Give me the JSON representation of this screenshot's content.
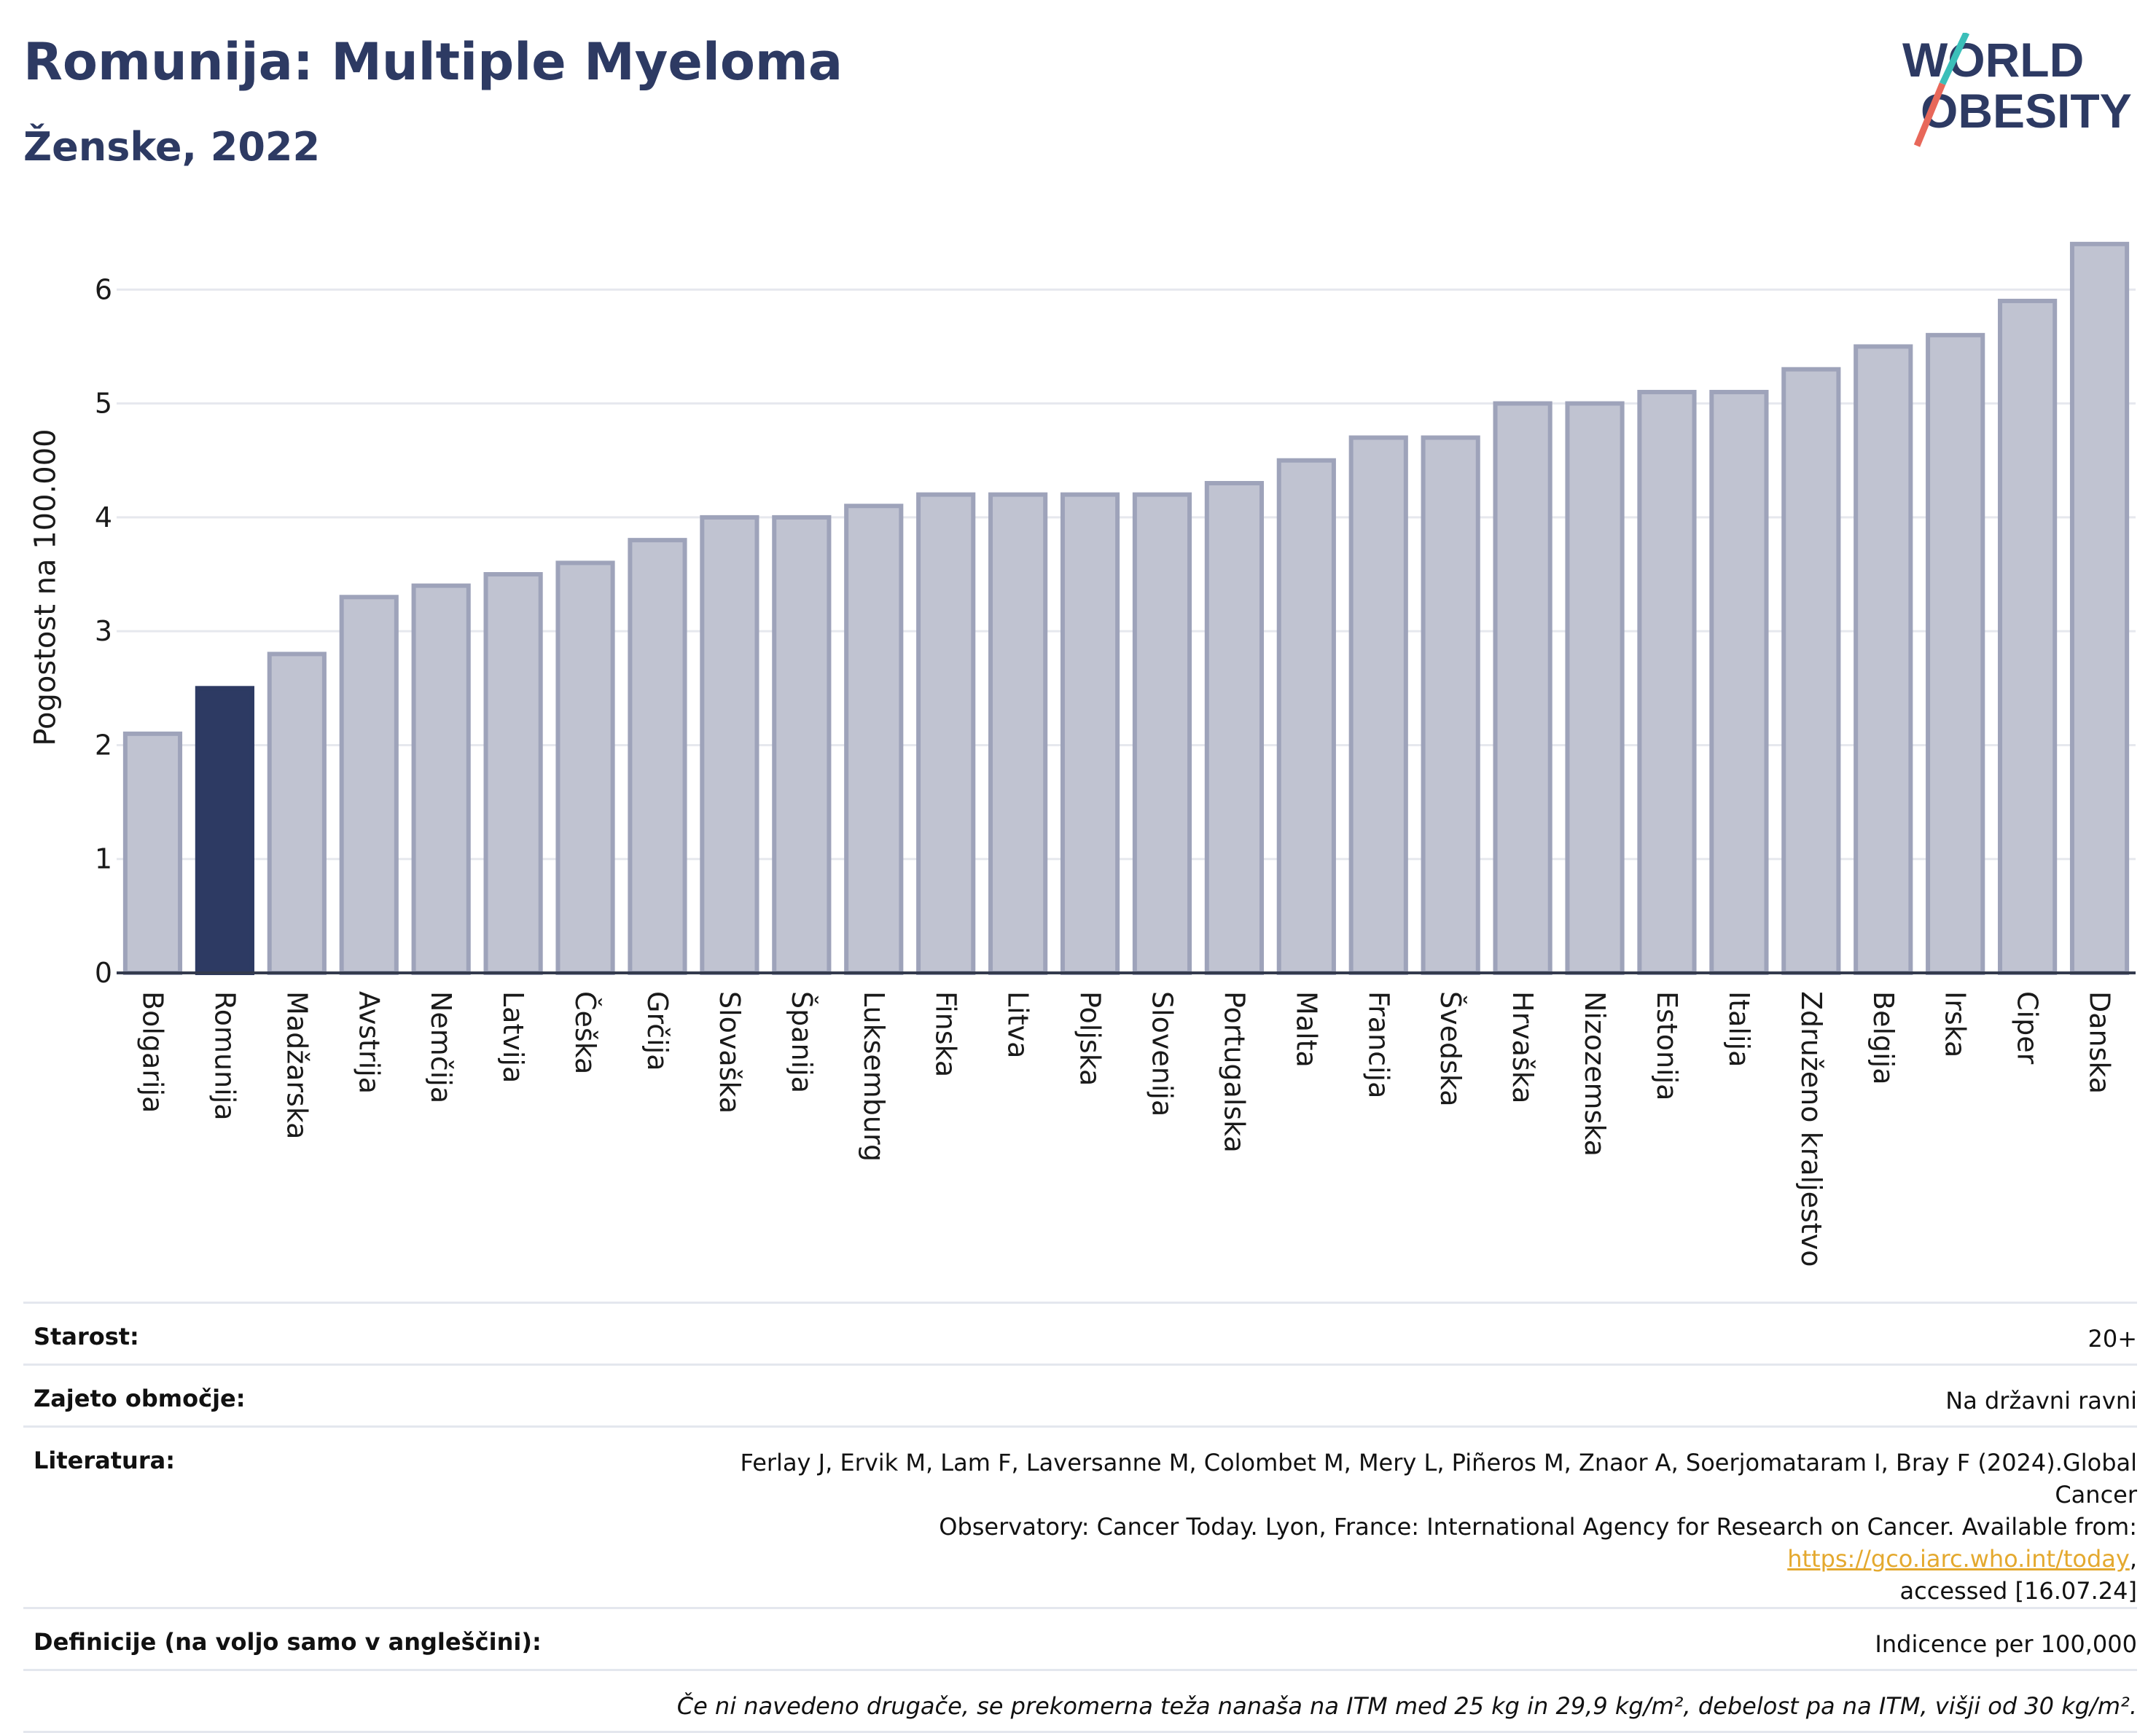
{
  "header": {
    "title": "Romunija: Multiple Myeloma",
    "subtitle": "Ženske, 2022"
  },
  "logo": {
    "line1": "WORLD",
    "line2": "OBESITY",
    "colors": {
      "text": "#2d3a63",
      "slash_teal": "#3bbfb9",
      "slash_red": "#e8685a"
    }
  },
  "colors": {
    "bar_default": "#c0c3d1",
    "bar_border": "#9ea3ba",
    "bar_highlight": "#2d3a63",
    "grid": "#e6e8ee",
    "axis": "#333a4d"
  },
  "chart_data": {
    "type": "bar",
    "ylabel": "Pogostost na 100.000",
    "xlabel": "",
    "ylim": [
      0,
      6.45
    ],
    "yticks": [
      0,
      1,
      2,
      3,
      4,
      5,
      6
    ],
    "grid": true,
    "highlight": "Romunija",
    "categories": [
      "Bolgarija",
      "Romunija",
      "Madžarska",
      "Avstrija",
      "Nemčija",
      "Latvija",
      "Češka",
      "Grčija",
      "Slovaška",
      "Španija",
      "Luksemburg",
      "Finska",
      "Litva",
      "Poljska",
      "Slovenija",
      "Portugalska",
      "Malta",
      "Francija",
      "Švedska",
      "Hrvaška",
      "Nizozemska",
      "Estonija",
      "Italija",
      "Združeno kraljestvo",
      "Belgija",
      "Irska",
      "Ciper",
      "Danska"
    ],
    "values": [
      2.1,
      2.5,
      2.8,
      3.3,
      3.4,
      3.5,
      3.6,
      3.8,
      4.0,
      4.0,
      4.1,
      4.2,
      4.2,
      4.2,
      4.2,
      4.3,
      4.5,
      4.7,
      4.7,
      5.0,
      5.0,
      5.1,
      5.1,
      5.3,
      5.5,
      5.6,
      5.9,
      6.4
    ]
  },
  "meta": {
    "age_label": "Starost:",
    "age_value": "20+",
    "coverage_label": "Zajeto območje:",
    "coverage_value": "Na državni ravni",
    "literature_label": "Literatura:",
    "literature_line1": "Ferlay J, Ervik M, Lam F, Laversanne M, Colombet M, Mery L, Piñeros M, Znaor A, Soerjomataram I, Bray F (2024).Global Cancer",
    "literature_line2": "Observatory: Cancer Today. Lyon, France: International Agency for Research on Cancer. Available from: ",
    "literature_link": "https://gco.iarc.who.int/today",
    "literature_line2_end": ",",
    "literature_line3": "accessed [16.07.24]",
    "definitions_label": "Definicije (na voljo samo v angleščini):",
    "definitions_value": "Indicence per 100,000",
    "footnote": "Če ni navedeno drugače, se prekomerna teža nanaša na ITM med 25 kg in 29,9 kg/m², debelost pa na ITM, višji od 30 kg/m²."
  }
}
